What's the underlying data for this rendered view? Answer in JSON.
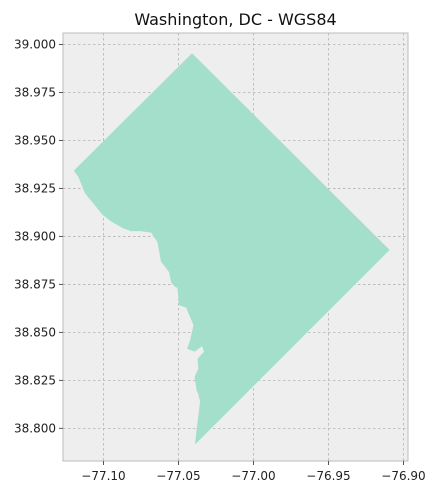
{
  "title": "Washington, DC - WGS84",
  "colors": {
    "plot_background": "#eeeeee",
    "frame": "#bcbcbc",
    "grid": "#b3b3b3",
    "polygon_fill": "#a3dfcb"
  },
  "map": {
    "type": "polygon",
    "grid": true,
    "xlim": [
      -77.127,
      -76.897
    ],
    "ylim": [
      38.783,
      39.006
    ],
    "x_ticks": [
      {
        "value": -77.1,
        "label": "−77.10"
      },
      {
        "value": -77.05,
        "label": "−77.05"
      },
      {
        "value": -77.0,
        "label": "−77.00"
      },
      {
        "value": -76.95,
        "label": "−76.95"
      },
      {
        "value": -76.9,
        "label": "−76.90"
      }
    ],
    "y_ticks": [
      {
        "value": 39.0,
        "label": "39.000"
      },
      {
        "value": 38.975,
        "label": "38.975"
      },
      {
        "value": 38.95,
        "label": "38.950"
      },
      {
        "value": 38.925,
        "label": "38.925"
      },
      {
        "value": 38.9,
        "label": "38.900"
      },
      {
        "value": 38.875,
        "label": "38.875"
      },
      {
        "value": 38.85,
        "label": "38.850"
      },
      {
        "value": 38.825,
        "label": "38.825"
      },
      {
        "value": 38.8,
        "label": "38.800"
      }
    ],
    "boundary": [
      [
        -77.1198,
        38.9343
      ],
      [
        -77.041,
        38.9955
      ],
      [
        -76.9093,
        38.893
      ],
      [
        -77.039,
        38.7916
      ],
      [
        -77.038,
        38.799
      ],
      [
        -77.0356,
        38.814
      ],
      [
        -77.0369,
        38.818
      ],
      [
        -77.038,
        38.82
      ],
      [
        -77.0393,
        38.8268
      ],
      [
        -77.0368,
        38.8311
      ],
      [
        -77.0373,
        38.8362
      ],
      [
        -77.033,
        38.84
      ],
      [
        -77.0343,
        38.8428
      ],
      [
        -77.0393,
        38.84
      ],
      [
        -77.0443,
        38.8415
      ],
      [
        -77.0423,
        38.8458
      ],
      [
        -77.04,
        38.8538
      ],
      [
        -77.0433,
        38.86
      ],
      [
        -77.0448,
        38.8628
      ],
      [
        -77.0498,
        38.8643
      ],
      [
        -77.0504,
        38.8708
      ],
      [
        -77.0508,
        38.8733
      ],
      [
        -77.052,
        38.8736
      ],
      [
        -77.0548,
        38.8758
      ],
      [
        -77.0563,
        38.8813
      ],
      [
        -77.0617,
        38.887
      ],
      [
        -77.064,
        38.897
      ],
      [
        -77.0683,
        38.902
      ],
      [
        -77.0755,
        38.9028
      ],
      [
        -77.0818,
        38.9028
      ],
      [
        -77.087,
        38.9043
      ],
      [
        -77.0953,
        38.908
      ],
      [
        -77.101,
        38.9116
      ],
      [
        -77.104,
        38.9145
      ],
      [
        -77.108,
        38.9183
      ],
      [
        -77.1125,
        38.9228
      ],
      [
        -77.1148,
        38.9273
      ],
      [
        -77.117,
        38.9313
      ],
      [
        -77.1198,
        38.9343
      ]
    ]
  }
}
